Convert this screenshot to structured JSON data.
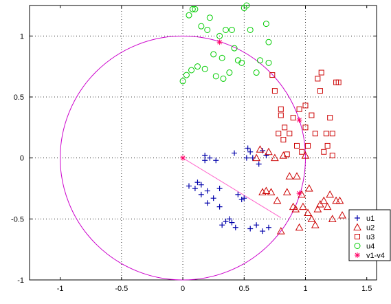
{
  "chart_data": {
    "type": "scatter",
    "title": "",
    "xlabel": "",
    "ylabel": "",
    "xlim": [
      -1.25,
      1.58
    ],
    "ylim": [
      -1,
      1.25
    ],
    "xticks": [
      -1,
      -0.5,
      0,
      0.5,
      1,
      1.5
    ],
    "yticks": [
      -1,
      -0.5,
      0,
      0.5,
      1
    ],
    "xtick_labels": [
      "-1",
      "-0.5",
      "0",
      "0.5",
      "1",
      "1.5"
    ],
    "ytick_labels": [
      "-1",
      "-0.5",
      "0",
      "0.5",
      "1"
    ],
    "grid": "dotted at ticks -0.5, 0, 0.5, 1 (both axes)",
    "legend_position": "bottom-right",
    "unit_circle": {
      "center": [
        0,
        0
      ],
      "radius": 1,
      "color": "#cc00cc"
    },
    "colors": {
      "u1": "#0000aa",
      "u2": "#cc0000",
      "u3": "#cc0000",
      "u4": "#00cc00",
      "v": "#ff0066",
      "circle": "#cc00cc"
    },
    "series": [
      {
        "name": "u1",
        "marker": "plus",
        "x": [
          0.05,
          0.1,
          0.12,
          0.15,
          0.15,
          0.18,
          0.18,
          0.2,
          0.2,
          0.22,
          0.25,
          0.27,
          0.3,
          0.3,
          0.32,
          0.35,
          0.38,
          0.4,
          0.42,
          0.43,
          0.45,
          0.48,
          0.5,
          0.52,
          0.53,
          0.55,
          0.55,
          0.57,
          0.6,
          0.62,
          0.65,
          0.65,
          0.68,
          0.7
        ],
        "y": [
          -0.23,
          -0.25,
          -0.2,
          -0.3,
          -0.22,
          0.02,
          -0.02,
          -0.37,
          -0.27,
          0.0,
          -0.33,
          -0.02,
          -0.4,
          -0.25,
          -0.55,
          -0.52,
          -0.5,
          -0.53,
          0.04,
          -0.57,
          -0.3,
          -0.34,
          -0.33,
          0.0,
          0.08,
          0.05,
          -0.58,
          0.0,
          -0.55,
          -0.05,
          -0.6,
          0.06,
          0.02,
          -0.57
        ]
      },
      {
        "name": "u2",
        "marker": "triangle",
        "x": [
          0.6,
          0.63,
          0.65,
          0.68,
          0.7,
          0.72,
          0.75,
          0.77,
          0.8,
          0.82,
          0.85,
          0.87,
          0.9,
          0.92,
          0.93,
          0.95,
          0.97,
          0.98,
          1.0,
          1.02,
          1.03,
          1.05,
          1.08,
          1.1,
          1.12,
          1.15,
          1.18,
          1.2,
          1.22,
          1.25,
          1.28,
          1.3
        ],
        "y": [
          0.0,
          0.07,
          -0.28,
          -0.27,
          0.05,
          -0.28,
          0.0,
          -0.35,
          -0.6,
          0.02,
          -0.28,
          -0.15,
          -0.4,
          -0.42,
          -0.15,
          -0.57,
          -0.3,
          -0.4,
          0.02,
          -0.45,
          -0.25,
          -0.5,
          -0.55,
          -0.42,
          -0.38,
          -0.35,
          -0.4,
          -0.3,
          -0.5,
          -0.35,
          -0.35,
          -0.47
        ]
      },
      {
        "name": "u3",
        "marker": "square",
        "x": [
          0.73,
          0.75,
          0.78,
          0.8,
          0.8,
          0.82,
          0.83,
          0.85,
          0.87,
          0.9,
          0.93,
          0.95,
          0.97,
          1.0,
          1.0,
          1.02,
          1.05,
          1.08,
          1.1,
          1.12,
          1.13,
          1.15,
          1.17,
          1.18,
          1.2,
          1.22,
          1.22,
          1.25,
          1.27
        ],
        "y": [
          0.68,
          0.55,
          0.2,
          0.4,
          0.35,
          0.15,
          0.25,
          0.03,
          0.2,
          0.33,
          0.1,
          0.4,
          0.05,
          0.43,
          0.25,
          0.1,
          0.35,
          0.2,
          0.65,
          0.55,
          0.7,
          0.05,
          0.2,
          0.1,
          0.33,
          0.02,
          0.2,
          0.62,
          0.62
        ]
      },
      {
        "name": "u4",
        "marker": "circle",
        "x": [
          0.0,
          0.03,
          0.05,
          0.07,
          0.08,
          0.1,
          0.12,
          0.15,
          0.18,
          0.2,
          0.22,
          0.25,
          0.27,
          0.3,
          0.32,
          0.33,
          0.35,
          0.38,
          0.4,
          0.42,
          0.45,
          0.48,
          0.5,
          0.52,
          0.55,
          0.6,
          0.63,
          0.68,
          0.7,
          0.7
        ],
        "y": [
          0.63,
          0.68,
          1.17,
          0.72,
          1.22,
          1.22,
          0.75,
          1.08,
          0.73,
          1.05,
          1.15,
          0.85,
          0.67,
          1.0,
          0.82,
          0.65,
          1.05,
          0.7,
          1.05,
          0.9,
          0.8,
          0.78,
          1.23,
          1.25,
          1.05,
          0.7,
          0.8,
          1.1,
          0.78,
          0.95
        ]
      },
      {
        "name": "v1-v4",
        "marker": "asterisk",
        "x": [
          0.0,
          0.3,
          0.95,
          0.95
        ],
        "y": [
          0.0,
          0.95,
          0.31,
          -0.29
        ]
      }
    ],
    "trend_line": {
      "x": [
        0.0,
        0.8
      ],
      "y": [
        0.0,
        -0.49
      ],
      "color": "#ff66cc"
    }
  }
}
